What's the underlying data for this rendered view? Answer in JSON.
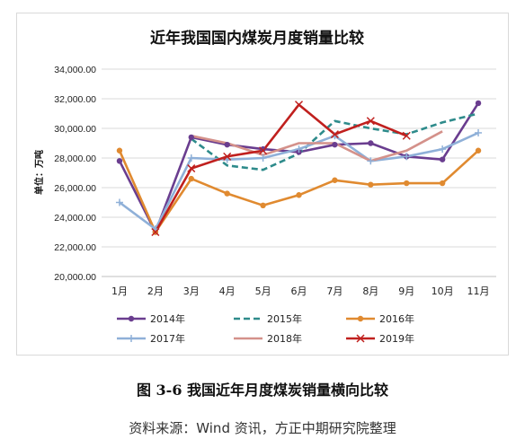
{
  "chart_data": {
    "type": "line",
    "title": "近年我国国内煤炭月度销量比较",
    "ylabel": "单位：万吨",
    "xlabel": "",
    "categories": [
      "1月",
      "2月",
      "3月",
      "4月",
      "5月",
      "6月",
      "7月",
      "8月",
      "9月",
      "10月",
      "11月"
    ],
    "ylim": [
      20000,
      34000
    ],
    "yticks": [
      "20,000.00",
      "22,000.00",
      "24,000.00",
      "26,000.00",
      "28,000.00",
      "30,000.00",
      "32,000.00",
      "34,000.00"
    ],
    "grid": true,
    "legend_position": "bottom",
    "series": [
      {
        "name": "2014年",
        "color": "#6a3d8f",
        "marker": "circle",
        "dash": "solid",
        "values": [
          27800,
          23000,
          29400,
          28900,
          28600,
          28400,
          28900,
          29000,
          28100,
          27900,
          31700
        ]
      },
      {
        "name": "2015年",
        "color": "#2e8b8b",
        "marker": "none",
        "dash": "dashed",
        "values": [
          null,
          null,
          29300,
          27500,
          27200,
          28300,
          30500,
          30000,
          29600,
          30400,
          31000
        ]
      },
      {
        "name": "2016年",
        "color": "#e08a30",
        "marker": "circle",
        "dash": "solid",
        "values": [
          28500,
          23000,
          26600,
          25600,
          24800,
          25500,
          26500,
          26200,
          26300,
          26300,
          28500
        ]
      },
      {
        "name": "2017年",
        "color": "#8fb0d8",
        "marker": "plus",
        "dash": "solid",
        "values": [
          25000,
          23200,
          28000,
          27900,
          28000,
          28600,
          29500,
          27800,
          28100,
          28600,
          29700
        ]
      },
      {
        "name": "2018年",
        "color": "#d4918a",
        "marker": "none",
        "dash": "solid",
        "values": [
          null,
          null,
          29500,
          29000,
          28200,
          29000,
          29000,
          27800,
          28500,
          29800,
          null
        ]
      },
      {
        "name": "2019年",
        "color": "#c0201e",
        "marker": "x",
        "dash": "solid",
        "values": [
          null,
          23000,
          27300,
          28100,
          28500,
          31600,
          29600,
          30500,
          29500,
          null,
          null
        ]
      }
    ]
  },
  "figure": {
    "caption": "图 3-6  我国近年月度煤炭销量横向比较",
    "source": "资料来源：Wind 资讯，方正中期研究院整理"
  }
}
